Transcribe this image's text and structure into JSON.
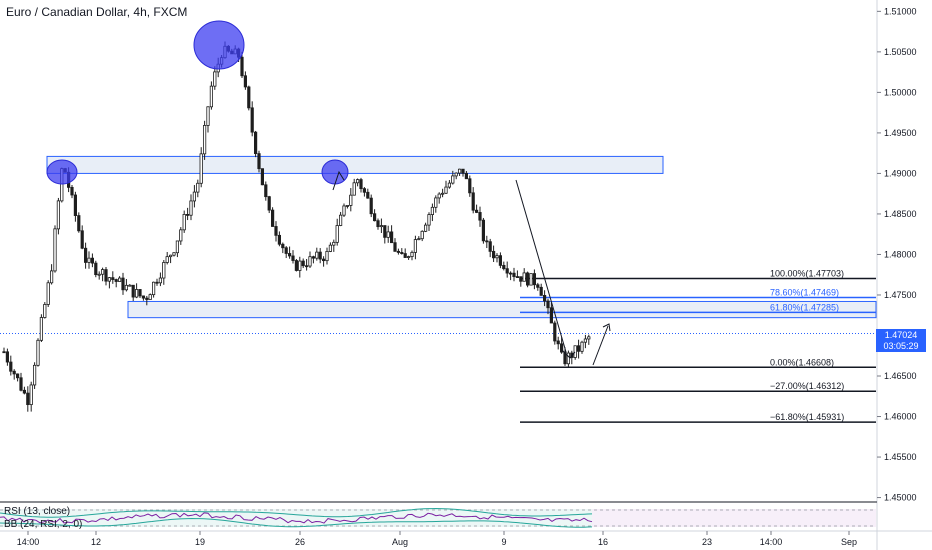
{
  "header": {
    "title": "Euro / Canadian Dollar, 4h, FXCM"
  },
  "price_axis": {
    "ticks": [
      "1.51000",
      "1.50500",
      "1.50000",
      "1.49500",
      "1.49000",
      "1.48500",
      "1.48000",
      "1.47500",
      "1.47000",
      "1.46500",
      "1.46000",
      "1.45500",
      "1.45000"
    ],
    "current_price": "1.47024",
    "countdown": "03:05:29"
  },
  "time_axis": {
    "ticks": [
      "14:00",
      "12",
      "19",
      "26",
      "Aug",
      "9",
      "16",
      "23",
      "14:00",
      "Sep"
    ]
  },
  "fibonacci": {
    "levels": [
      {
        "label": "100.00%(1.47703)",
        "price": 1.47703,
        "color": "#131722"
      },
      {
        "label": "78.60%(1.47469)",
        "price": 1.47469,
        "color": "#2962ff"
      },
      {
        "label": "61.80%(1.47285)",
        "price": 1.47285,
        "color": "#2962ff"
      },
      {
        "label": "0.00%(1.46608)",
        "price": 1.46608,
        "color": "#131722"
      },
      {
        "label": "−27.00%(1.46312)",
        "price": 1.46312,
        "color": "#131722"
      },
      {
        "label": "−61.80%(1.45931)",
        "price": 1.45931,
        "color": "#131722"
      }
    ]
  },
  "indicators": {
    "rsi_label": "RSI (13, close)",
    "bb_label": "BB (24, RSI, 2, 0)"
  },
  "colors": {
    "up": "#1e1e1e",
    "down": "#1e1e1e",
    "zone_fill": "#e8eef7",
    "zone_border": "#2962ff",
    "ellipse": "#3d3ef0",
    "price_line": "#2962ff",
    "rsi": "#7b1fa2",
    "bb_band": "#26a69a"
  },
  "chart_data": {
    "type": "candlestick",
    "symbol": "EURCAD",
    "interval": "4h",
    "ylim": [
      1.4497,
      1.5114
    ],
    "key_prices": [
      {
        "x": 0,
        "y": 1.468
      },
      {
        "x": 0.04,
        "y": 1.462
      },
      {
        "x": 0.08,
        "y": 1.478
      },
      {
        "x": 0.1,
        "y": 1.4915
      },
      {
        "x": 0.14,
        "y": 1.479
      },
      {
        "x": 0.24,
        "y": 1.4745
      },
      {
        "x": 0.29,
        "y": 1.481
      },
      {
        "x": 0.33,
        "y": 1.489
      },
      {
        "x": 0.35,
        "y": 1.5
      },
      {
        "x": 0.37,
        "y": 1.505
      },
      {
        "x": 0.4,
        "y": 1.5045
      },
      {
        "x": 0.42,
        "y": 1.496
      },
      {
        "x": 0.45,
        "y": 1.485
      },
      {
        "x": 0.49,
        "y": 1.4785
      },
      {
        "x": 0.55,
        "y": 1.48
      },
      {
        "x": 0.6,
        "y": 1.4895
      },
      {
        "x": 0.64,
        "y": 1.4835
      },
      {
        "x": 0.68,
        "y": 1.479
      },
      {
        "x": 0.74,
        "y": 1.4875
      },
      {
        "x": 0.78,
        "y": 1.4905
      },
      {
        "x": 0.82,
        "y": 1.481
      },
      {
        "x": 0.87,
        "y": 1.4775
      },
      {
        "x": 0.91,
        "y": 1.4765
      },
      {
        "x": 0.93,
        "y": 1.4715
      },
      {
        "x": 0.95,
        "y": 1.4668
      },
      {
        "x": 0.98,
        "y": 1.4685
      },
      {
        "x": 1.0,
        "y": 1.4702
      }
    ]
  }
}
